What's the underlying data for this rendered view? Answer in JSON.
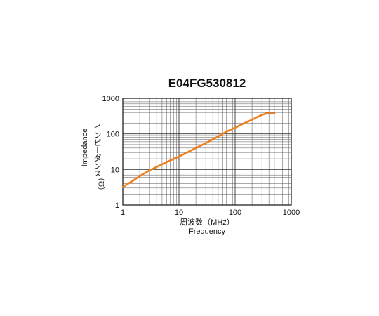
{
  "chart_data": {
    "type": "line",
    "title": "E04FG530812",
    "xlabel": "周波数（MHz）",
    "xlabel_en": "Frequency",
    "ylabel": "インピーダンス",
    "ylabel_unit": "（Ω）",
    "ylabel_en": "Impedance",
    "xscale": "log",
    "yscale": "log",
    "xlim": [
      1,
      1000
    ],
    "ylim": [
      1,
      1000
    ],
    "x_ticks": [
      "1",
      "10",
      "100",
      "1000"
    ],
    "y_ticks": [
      "1",
      "10",
      "100",
      "1000"
    ],
    "grid": true,
    "legend": "none",
    "series": [
      {
        "color": "#f07f1a",
        "x": [
          1,
          1.5,
          2,
          3,
          5,
          7,
          10,
          20,
          30,
          50,
          70,
          100,
          150,
          200,
          250,
          300,
          350,
          400,
          450,
          500
        ],
        "y": [
          3.2,
          4.8,
          6.5,
          9.5,
          14,
          18,
          23,
          40,
          55,
          85,
          115,
          150,
          205,
          250,
          300,
          340,
          370,
          375,
          375,
          375
        ]
      }
    ]
  }
}
